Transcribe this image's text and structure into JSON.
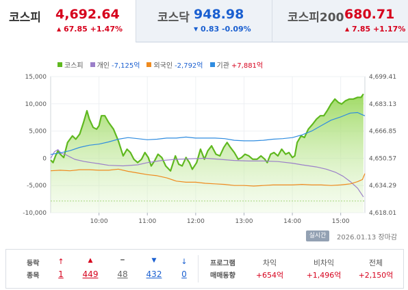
{
  "tabs": [
    {
      "name": "코스피",
      "price": "4,692.64",
      "change": "67.85 +1.47%",
      "direction": "up",
      "active": true
    },
    {
      "name": "코스닥",
      "price": "948.98",
      "change": "0.83 -0.09%",
      "direction": "down",
      "active": false
    },
    {
      "name": "코스피200",
      "price": "680.71",
      "change": "7.85 +1.17%",
      "direction": "up",
      "active": false
    }
  ],
  "legend": [
    {
      "name": "코스피",
      "value": "",
      "color": "#5fb81f",
      "value_color": ""
    },
    {
      "name": "개인",
      "value": "-7,125억",
      "color": "#9b7fc9",
      "value_color": "#1a5fd0"
    },
    {
      "name": "외국인",
      "value": "-2,792억",
      "color": "#ef8a1e",
      "value_color": "#1a5fd0"
    },
    {
      "name": "기관",
      "value": "+7,881억",
      "color": "#2f8ce0",
      "value_color": "#d6001c"
    }
  ],
  "chart_data": {
    "type": "line",
    "x_labels": [
      "10:00",
      "11:00",
      "12:00",
      "13:00",
      "14:00",
      "15:00"
    ],
    "y_left_ticks": [
      "15,000",
      "10,000",
      "5,000",
      "0",
      "-5,000",
      "-10,000"
    ],
    "y_right_ticks": [
      "4,699.41",
      "4,683.13",
      "4,666.85",
      "4,650.57",
      "4,634.29",
      "4,618.01"
    ],
    "y_left_range": [
      -10000,
      15000
    ],
    "y_right_range": [
      4618.01,
      4699.41
    ],
    "x_range_hours": [
      9.0,
      15.5
    ],
    "series": [
      {
        "name": "코스피",
        "axis": "right",
        "color": "#5fb81f",
        "fill": true,
        "points": [
          [
            9.0,
            4649.5
          ],
          [
            9.05,
            4648
          ],
          [
            9.1,
            4652
          ],
          [
            9.15,
            4655
          ],
          [
            9.2,
            4653
          ],
          [
            9.27,
            4651
          ],
          [
            9.35,
            4660
          ],
          [
            9.45,
            4664
          ],
          [
            9.52,
            4662
          ],
          [
            9.6,
            4665
          ],
          [
            9.68,
            4672
          ],
          [
            9.75,
            4679
          ],
          [
            9.8,
            4674
          ],
          [
            9.88,
            4669
          ],
          [
            9.95,
            4668
          ],
          [
            10.0,
            4670
          ],
          [
            10.05,
            4676
          ],
          [
            10.12,
            4676
          ],
          [
            10.2,
            4672
          ],
          [
            10.3,
            4668
          ],
          [
            10.4,
            4661
          ],
          [
            10.5,
            4652
          ],
          [
            10.58,
            4656
          ],
          [
            10.65,
            4654
          ],
          [
            10.72,
            4650
          ],
          [
            10.8,
            4648
          ],
          [
            10.88,
            4650
          ],
          [
            10.95,
            4654
          ],
          [
            11.02,
            4651
          ],
          [
            11.08,
            4646
          ],
          [
            11.15,
            4649
          ],
          [
            11.22,
            4653
          ],
          [
            11.3,
            4651
          ],
          [
            11.38,
            4646
          ],
          [
            11.48,
            4643
          ],
          [
            11.58,
            4652
          ],
          [
            11.65,
            4647
          ],
          [
            11.72,
            4646
          ],
          [
            11.8,
            4651
          ],
          [
            11.87,
            4648
          ],
          [
            11.93,
            4644
          ],
          [
            12.02,
            4648
          ],
          [
            12.1,
            4656
          ],
          [
            12.18,
            4650
          ],
          [
            12.25,
            4655
          ],
          [
            12.33,
            4658
          ],
          [
            12.42,
            4653
          ],
          [
            12.5,
            4652
          ],
          [
            12.58,
            4657
          ],
          [
            12.65,
            4660
          ],
          [
            12.72,
            4657
          ],
          [
            12.8,
            4654
          ],
          [
            12.88,
            4650
          ],
          [
            12.95,
            4651
          ],
          [
            13.02,
            4653
          ],
          [
            13.1,
            4652
          ],
          [
            13.18,
            4650
          ],
          [
            13.27,
            4650
          ],
          [
            13.35,
            4652
          ],
          [
            13.43,
            4650
          ],
          [
            13.48,
            4648
          ],
          [
            13.55,
            4653
          ],
          [
            13.62,
            4654
          ],
          [
            13.7,
            4652
          ],
          [
            13.78,
            4656
          ],
          [
            13.86,
            4653
          ],
          [
            13.93,
            4654
          ],
          [
            14.0,
            4651
          ],
          [
            14.05,
            4652
          ],
          [
            14.1,
            4660
          ],
          [
            14.18,
            4664
          ],
          [
            14.25,
            4663
          ],
          [
            14.33,
            4668
          ],
          [
            14.42,
            4671
          ],
          [
            14.5,
            4674
          ],
          [
            14.58,
            4676
          ],
          [
            14.65,
            4676
          ],
          [
            14.72,
            4679
          ],
          [
            14.8,
            4683
          ],
          [
            14.88,
            4686
          ],
          [
            14.95,
            4684
          ],
          [
            15.02,
            4683
          ],
          [
            15.1,
            4685
          ],
          [
            15.18,
            4686
          ],
          [
            15.26,
            4686
          ],
          [
            15.35,
            4687
          ],
          [
            15.42,
            4687
          ],
          [
            15.47,
            4689
          ]
        ]
      },
      {
        "name": "개인",
        "axis": "left",
        "color": "#9b7fc9",
        "fill": false,
        "points": [
          [
            9.0,
            0
          ],
          [
            9.08,
            1200
          ],
          [
            9.15,
            1600
          ],
          [
            9.22,
            900
          ],
          [
            9.3,
            700
          ],
          [
            9.5,
            -200
          ],
          [
            9.7,
            -600
          ],
          [
            9.85,
            -800
          ],
          [
            10.0,
            -1000
          ],
          [
            10.2,
            -1300
          ],
          [
            10.5,
            -1400
          ],
          [
            10.8,
            -1200
          ],
          [
            11.0,
            -800
          ],
          [
            11.3,
            -400
          ],
          [
            11.6,
            -200
          ],
          [
            11.9,
            -100
          ],
          [
            12.2,
            0
          ],
          [
            12.5,
            -200
          ],
          [
            12.8,
            -400
          ],
          [
            13.1,
            -500
          ],
          [
            13.4,
            -500
          ],
          [
            13.7,
            -600
          ],
          [
            14.0,
            -900
          ],
          [
            14.2,
            -1200
          ],
          [
            14.5,
            -1600
          ],
          [
            14.7,
            -2000
          ],
          [
            14.9,
            -2600
          ],
          [
            15.05,
            -3300
          ],
          [
            15.2,
            -4300
          ],
          [
            15.35,
            -5500
          ],
          [
            15.47,
            -7100
          ]
        ]
      },
      {
        "name": "외국인",
        "axis": "left",
        "color": "#ef8a1e",
        "fill": false,
        "points": [
          [
            9.0,
            -2300
          ],
          [
            9.2,
            -2200
          ],
          [
            9.4,
            -2300
          ],
          [
            9.6,
            -2100
          ],
          [
            9.8,
            -2100
          ],
          [
            10.0,
            -2200
          ],
          [
            10.2,
            -2200
          ],
          [
            10.4,
            -2000
          ],
          [
            10.6,
            -2400
          ],
          [
            10.8,
            -2700
          ],
          [
            11.0,
            -3000
          ],
          [
            11.2,
            -3200
          ],
          [
            11.4,
            -3600
          ],
          [
            11.6,
            -4200
          ],
          [
            11.8,
            -4400
          ],
          [
            12.0,
            -4400
          ],
          [
            12.2,
            -4600
          ],
          [
            12.4,
            -4700
          ],
          [
            12.6,
            -4800
          ],
          [
            12.8,
            -5000
          ],
          [
            13.0,
            -5000
          ],
          [
            13.2,
            -5100
          ],
          [
            13.4,
            -5000
          ],
          [
            13.6,
            -4900
          ],
          [
            13.8,
            -4900
          ],
          [
            14.0,
            -4900
          ],
          [
            14.2,
            -4800
          ],
          [
            14.4,
            -4900
          ],
          [
            14.6,
            -4900
          ],
          [
            14.8,
            -5000
          ],
          [
            15.0,
            -4900
          ],
          [
            15.2,
            -4700
          ],
          [
            15.35,
            -4300
          ],
          [
            15.45,
            -3900
          ],
          [
            15.5,
            -2800
          ]
        ]
      },
      {
        "name": "기관",
        "axis": "left",
        "color": "#2f8ce0",
        "fill": false,
        "points": [
          [
            9.0,
            700
          ],
          [
            9.2,
            1000
          ],
          [
            9.4,
            1400
          ],
          [
            9.6,
            2000
          ],
          [
            9.8,
            2400
          ],
          [
            10.0,
            2600
          ],
          [
            10.2,
            3000
          ],
          [
            10.4,
            3500
          ],
          [
            10.6,
            3800
          ],
          [
            10.8,
            3600
          ],
          [
            11.0,
            3400
          ],
          [
            11.2,
            3500
          ],
          [
            11.4,
            3700
          ],
          [
            11.6,
            3700
          ],
          [
            11.8,
            3900
          ],
          [
            12.0,
            3700
          ],
          [
            12.2,
            3700
          ],
          [
            12.4,
            3700
          ],
          [
            12.6,
            3600
          ],
          [
            12.8,
            3300
          ],
          [
            13.0,
            3200
          ],
          [
            13.2,
            3200
          ],
          [
            13.4,
            3300
          ],
          [
            13.6,
            3500
          ],
          [
            13.8,
            3600
          ],
          [
            14.0,
            3800
          ],
          [
            14.2,
            4300
          ],
          [
            14.4,
            5000
          ],
          [
            14.6,
            6000
          ],
          [
            14.8,
            7000
          ],
          [
            15.0,
            7600
          ],
          [
            15.2,
            8300
          ],
          [
            15.35,
            8400
          ],
          [
            15.42,
            8100
          ],
          [
            15.5,
            7800
          ]
        ]
      }
    ],
    "reference_line": {
      "axis": "right",
      "value": 4625,
      "color": "#7fc24b",
      "style": "dashed"
    }
  },
  "meta": {
    "badge": "실시간",
    "date": "2026.01.13",
    "status": "장마감"
  },
  "breadth": {
    "label1": "등락",
    "label2": "종목",
    "items": [
      {
        "icon": "↑",
        "value": "1",
        "color": "#d6001c",
        "icon_name": "upper-limit-icon"
      },
      {
        "icon": "▲",
        "value": "449",
        "color": "#d6001c",
        "icon_name": "rise-icon"
      },
      {
        "icon": "━",
        "value": "48",
        "color": "#666666",
        "icon_name": "flat-icon"
      },
      {
        "icon": "▼",
        "value": "432",
        "color": "#1a5fd0",
        "icon_name": "fall-icon"
      },
      {
        "icon": "↓",
        "value": "0",
        "color": "#1a5fd0",
        "icon_name": "lower-limit-icon"
      }
    ]
  },
  "program": {
    "label1": "프로그램",
    "label2": "매매동향",
    "columns": [
      {
        "head": "차익",
        "value": "+654억"
      },
      {
        "head": "비차익",
        "value": "+1,496억"
      },
      {
        "head": "전체",
        "value": "+2,150억"
      }
    ]
  }
}
